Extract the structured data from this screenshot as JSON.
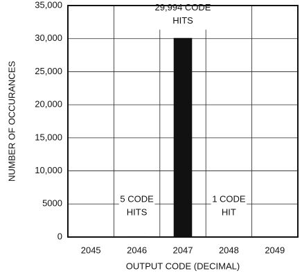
{
  "chart_data": {
    "type": "bar",
    "xlabel": "OUTPUT CODE (DECIMAL)",
    "ylabel": "NUMBER OF OCCURANCES",
    "categories": [
      "2045",
      "2046",
      "2047",
      "2048",
      "2049"
    ],
    "values": [
      0,
      5,
      29994,
      1,
      0
    ],
    "value_labels": [
      null,
      [
        "5 CODE",
        "HITS"
      ],
      [
        "29,994 CODE",
        "HITS"
      ],
      [
        "1 CODE",
        "HIT"
      ],
      null
    ],
    "color": "#111111",
    "ylim": [
      0,
      35000
    ],
    "yticks": [
      0,
      5000,
      {
        "value": 10000,
        "label": "10,000"
      },
      {
        "value": 15000,
        "label": "15,000"
      },
      {
        "value": 20000,
        "label": "20,000"
      },
      {
        "value": 25000,
        "label": "25,000"
      },
      {
        "value": 30000,
        "label": "30,000"
      },
      {
        "value": 35000,
        "label": "35,000"
      }
    ],
    "grid": true
  }
}
